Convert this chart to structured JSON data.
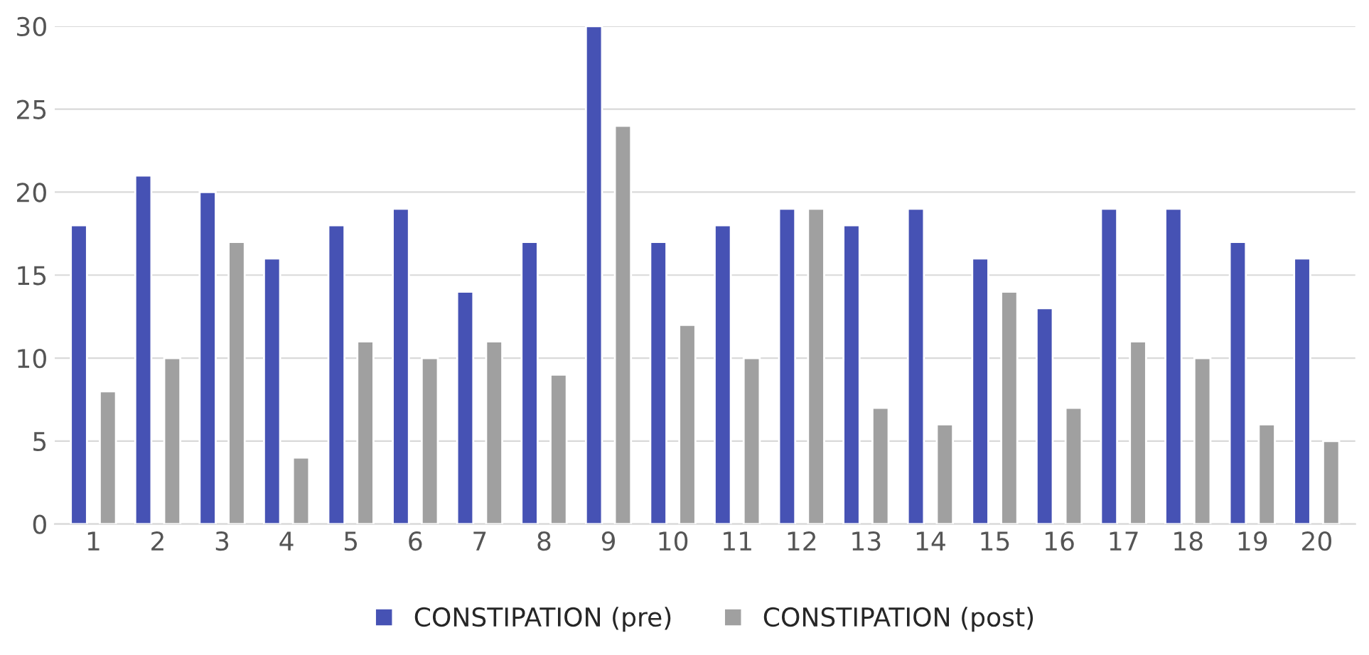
{
  "chart_data": {
    "type": "bar",
    "categories": [
      "1",
      "2",
      "3",
      "4",
      "5",
      "6",
      "7",
      "8",
      "9",
      "10",
      "11",
      "12",
      "13",
      "14",
      "15",
      "16",
      "17",
      "18",
      "19",
      "20"
    ],
    "series": [
      {
        "name": "CONSTIPATION (pre)",
        "color": "#4652b4",
        "values": [
          18,
          21,
          20,
          16,
          18,
          19,
          14,
          17,
          30,
          17,
          18,
          19,
          18,
          19,
          16,
          13,
          19,
          19,
          17,
          16
        ]
      },
      {
        "name": "CONSTIPATION (post)",
        "color": "#a0a0a0",
        "values": [
          8,
          10,
          17,
          4,
          11,
          10,
          11,
          9,
          24,
          12,
          10,
          19,
          7,
          6,
          14,
          7,
          11,
          10,
          6,
          5
        ]
      }
    ],
    "ylim": [
      0,
      30
    ],
    "yticks": [
      0,
      5,
      10,
      15,
      20,
      25,
      30
    ],
    "grid": "y",
    "legend": "bottom"
  }
}
